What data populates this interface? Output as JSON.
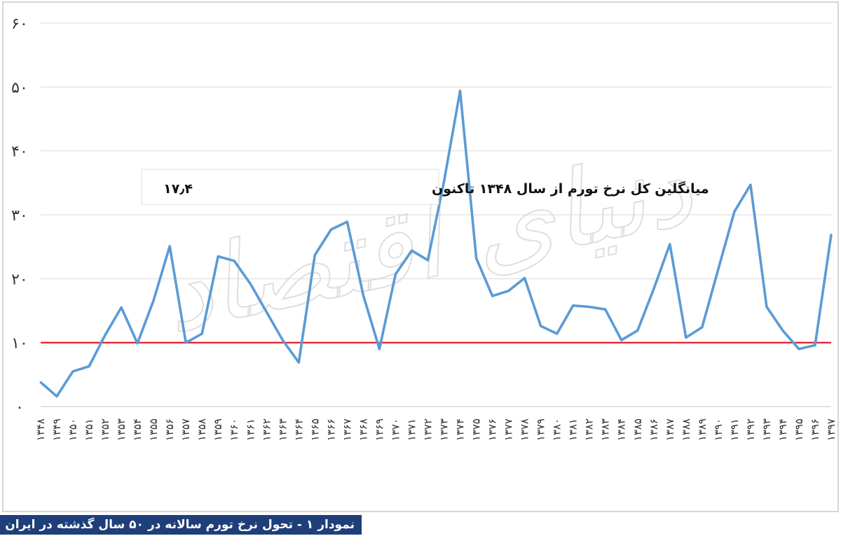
{
  "caption": "نمودار ۱ - تحول نرخ تورم سالانه در ۵۰ سال گذشته در ایران",
  "watermark": "دنیای اقتصاد",
  "colors": {
    "series": "#5b9bd5",
    "reference": "#e0101c",
    "grid": "#d9d9d9",
    "caption_bg": "#1f3f7a",
    "caption_text": "#ffffff"
  },
  "chart_data": {
    "type": "line",
    "ylim": [
      0,
      60
    ],
    "yticks": [
      0,
      10,
      20,
      30,
      40,
      50,
      60
    ],
    "ytick_labels": [
      "۰",
      "۱۰",
      "۲۰",
      "۳۰",
      "۴۰",
      "۵۰",
      "۶۰"
    ],
    "grid": true,
    "x": [
      "۱۳۴۸",
      "۱۳۴۹",
      "۱۳۵۰",
      "۱۳۵۱",
      "۱۳۵۲",
      "۱۳۵۳",
      "۱۳۵۴",
      "۱۳۵۵",
      "۱۳۵۶",
      "۱۳۵۷",
      "۱۳۵۸",
      "۱۳۵۹",
      "۱۳۶۰",
      "۱۳۶۱",
      "۱۳۶۲",
      "۱۳۶۳",
      "۱۳۶۴",
      "۱۳۶۵",
      "۱۳۶۶",
      "۱۳۶۷",
      "۱۳۶۸",
      "۱۳۶۹",
      "۱۳۷۰",
      "۱۳۷۱",
      "۱۳۷۲",
      "۱۳۷۳",
      "۱۳۷۴",
      "۱۳۷۵",
      "۱۳۷۶",
      "۱۳۷۷",
      "۱۳۷۸",
      "۱۳۷۹",
      "۱۳۸۰",
      "۱۳۸۱",
      "۱۳۸۲",
      "۱۳۸۳",
      "۱۳۸۴",
      "۱۳۸۵",
      "۱۳۸۶",
      "۱۳۸۷",
      "۱۳۸۸",
      "۱۳۸۹",
      "۱۳۹۰",
      "۱۳۹۱",
      "۱۳۹۲",
      "۱۳۹۳",
      "۱۳۹۴",
      "۱۳۹۵",
      "۱۳۹۶",
      "۱۳۹۷"
    ],
    "series": [
      {
        "values": [
          3.8,
          1.6,
          5.5,
          6.3,
          11.2,
          15.5,
          9.9,
          16.6,
          25.1,
          10.0,
          11.4,
          23.5,
          22.8,
          19.2,
          14.8,
          10.4,
          6.9,
          23.7,
          27.7,
          28.9,
          17.4,
          9.0,
          20.7,
          24.4,
          22.9,
          35.2,
          49.4,
          23.2,
          17.3,
          18.1,
          20.1,
          12.6,
          11.4,
          15.8,
          15.6,
          15.2,
          10.4,
          11.9,
          18.4,
          25.4,
          10.8,
          12.4,
          21.5,
          30.5,
          34.7,
          15.6,
          11.9,
          9.0,
          9.6,
          26.9
        ]
      }
    ],
    "reference_line": {
      "y": 10
    },
    "annotation": {
      "label": "میانگلین کل نرخ تورم از سال ۱۳۴۸ تاکنون",
      "value": "۱۷٫۴"
    }
  }
}
